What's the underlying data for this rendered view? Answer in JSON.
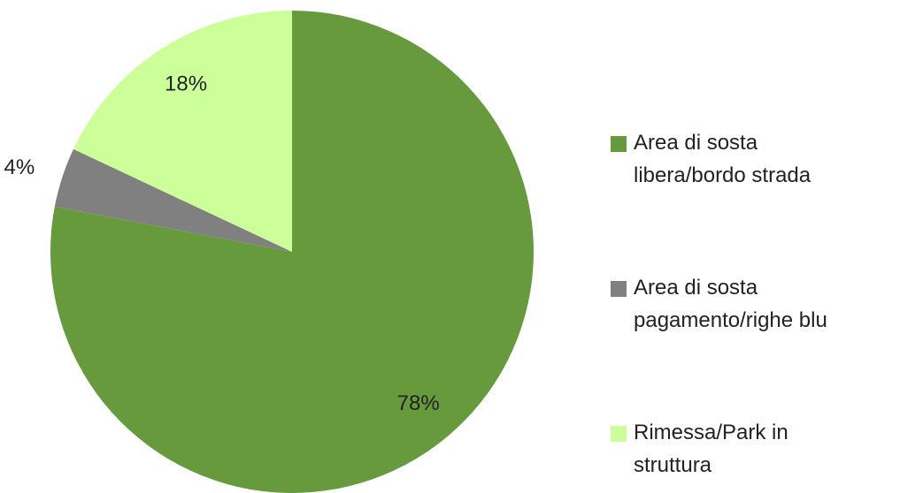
{
  "chart_data": {
    "type": "pie",
    "categories": [
      "Area di sosta libera/bordo strada",
      "Area di sosta pagamento/righe blu",
      "Rimessa/Park in struttura"
    ],
    "values": [
      78,
      4,
      18
    ],
    "value_labels": [
      "78%",
      "4%",
      "18%"
    ],
    "colors": [
      "#669a3d",
      "#808080",
      "#ccff99"
    ],
    "legend": "right"
  }
}
